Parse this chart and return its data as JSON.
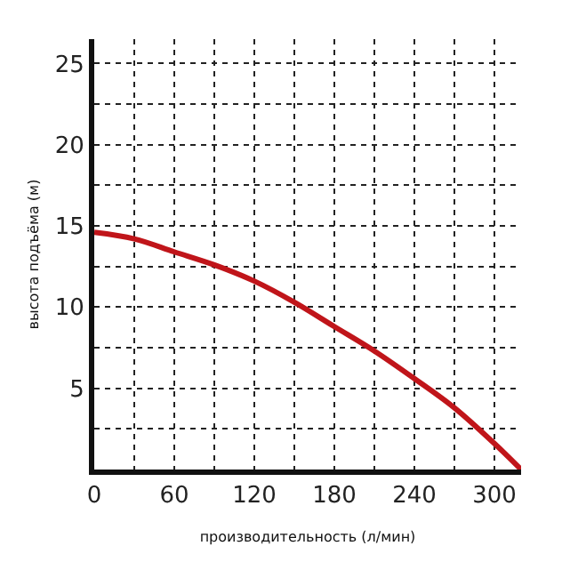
{
  "chart_data": {
    "type": "line",
    "xlabel": "производительность (л/мин)",
    "ylabel": "высота подъёма (м)",
    "x": [
      0,
      30,
      60,
      90,
      120,
      150,
      180,
      210,
      240,
      270,
      300,
      320
    ],
    "series": [
      {
        "color": "#c0151a",
        "values": [
          14.6,
          14.2,
          13.4,
          12.6,
          11.6,
          10.3,
          8.8,
          7.3,
          5.6,
          3.8,
          1.6,
          0
        ]
      }
    ],
    "xlim": [
      0,
      320
    ],
    "ylim": [
      0,
      26.5
    ],
    "xticks": [
      0,
      {
        "value": 30,
        "label": null
      },
      60,
      {
        "value": 90,
        "label": null
      },
      120,
      {
        "value": 150,
        "label": null
      },
      180,
      {
        "value": 210,
        "label": null
      },
      240,
      {
        "value": 270,
        "label": null
      },
      300
    ],
    "yticks": [
      {
        "value": 2.5,
        "label": null
      },
      5,
      {
        "value": 7.5,
        "label": null
      },
      10,
      {
        "value": 12.5,
        "label": null
      },
      15,
      {
        "value": 17.5,
        "label": null
      },
      20,
      {
        "value": 22.5,
        "label": null
      },
      25
    ],
    "grid": true
  }
}
